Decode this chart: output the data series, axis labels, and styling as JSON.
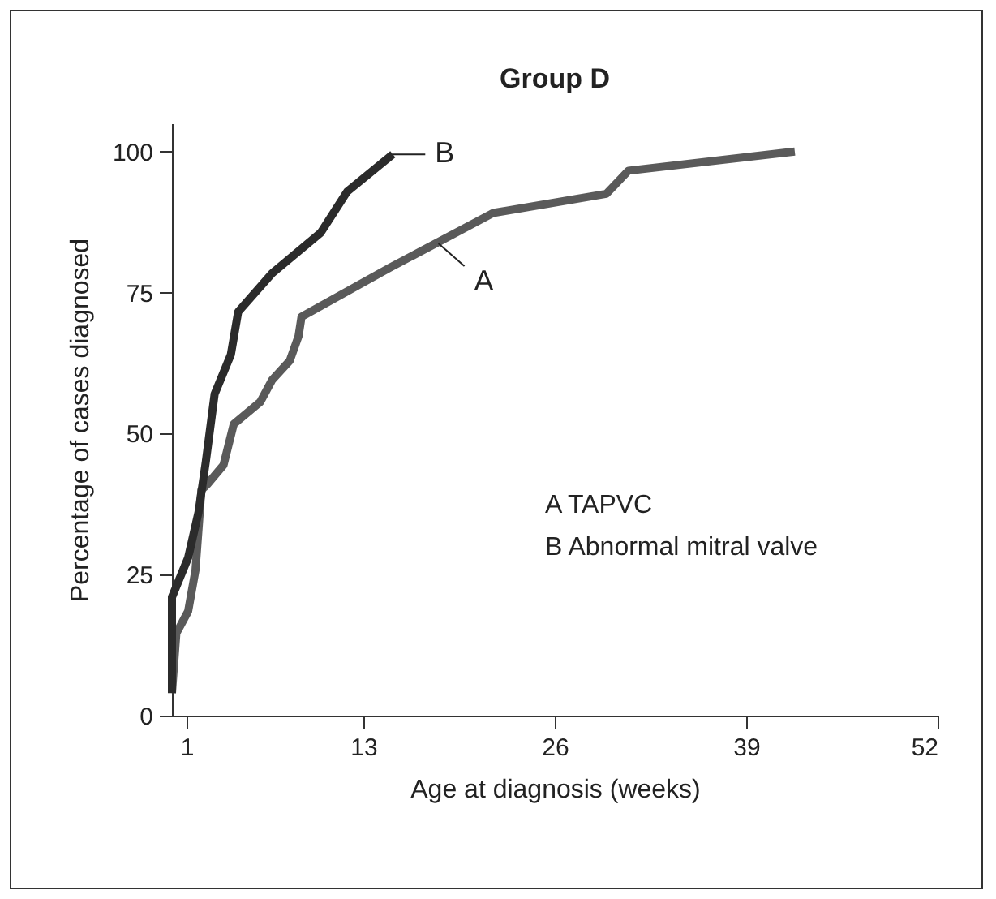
{
  "chart_data": {
    "type": "line",
    "title": "Group D",
    "xlabel": "Age at diagnosis (weeks)",
    "ylabel": "Percentage of cases diagnosed",
    "xlim": [
      0,
      52
    ],
    "xticks": [
      1,
      13,
      26,
      39,
      52
    ],
    "ylim": [
      0,
      105
    ],
    "yticks": [
      0,
      25,
      50,
      75,
      100
    ],
    "grid": false,
    "legend": false,
    "marker": "none",
    "line_style": "solid",
    "series": [
      {
        "color": "#5a5a5a",
        "x": [
          0,
          0.3,
          1.1,
          1.6,
          2.0,
          2.4,
          3.5,
          4.2,
          6.0,
          6.8,
          8.0,
          8.6,
          8.8,
          14.8,
          21.8,
          29.5,
          31.0,
          42.3
        ],
        "values": [
          4,
          14.6,
          18.5,
          25.8,
          40,
          41,
          44.4,
          51.7,
          55.6,
          59.5,
          62.9,
          67.3,
          70.7,
          79.4,
          89.1,
          92.5,
          96.6,
          100
        ]
      },
      {
        "color": "#2b2b2b",
        "x": [
          0,
          0,
          1.1,
          1.8,
          2.3,
          2.9,
          4.0,
          4.5,
          6.8,
          10.1,
          11.9,
          15.0
        ],
        "values": [
          4,
          21,
          28,
          36,
          45,
          57,
          64,
          71.6,
          78.4,
          85.6,
          92.9,
          99.5
        ]
      }
    ],
    "annotations": [
      {
        "text": "A",
        "x": 18.1,
        "y": 83.7
      },
      {
        "text": "B",
        "x": 15.0,
        "y": 99.5
      },
      "A   TAPVC",
      "B   Abnormal mitral valve"
    ]
  }
}
